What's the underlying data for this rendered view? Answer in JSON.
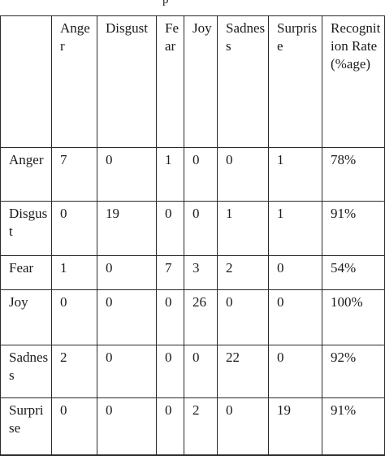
{
  "caption_fragment": "p",
  "table": {
    "headers": [
      "",
      "Anger",
      "Disgust",
      "Fear",
      "Joy",
      "Sadness",
      "Surprise",
      "Recognition Rate (%age)"
    ],
    "rows": [
      {
        "label": "Anger",
        "values": [
          "7",
          "0",
          "1",
          "0",
          "0",
          "1"
        ],
        "rate": "78%"
      },
      {
        "label": "Disgust",
        "values": [
          "0",
          "19",
          "0",
          "0",
          "1",
          "1"
        ],
        "rate": "91%"
      },
      {
        "label": "Fear",
        "values": [
          "1",
          "0",
          "7",
          "3",
          "2",
          "0"
        ],
        "rate": "54%"
      },
      {
        "label": "Joy",
        "values": [
          "0",
          "0",
          "0",
          "26",
          "0",
          "0"
        ],
        "rate": "100%"
      },
      {
        "label": "Sadness",
        "values": [
          "2",
          "0",
          "0",
          "0",
          "22",
          "0"
        ],
        "rate": "92%"
      },
      {
        "label": "Surprise",
        "values": [
          "0",
          "0",
          "0",
          "2",
          "0",
          "19"
        ],
        "rate": "91%"
      }
    ]
  }
}
